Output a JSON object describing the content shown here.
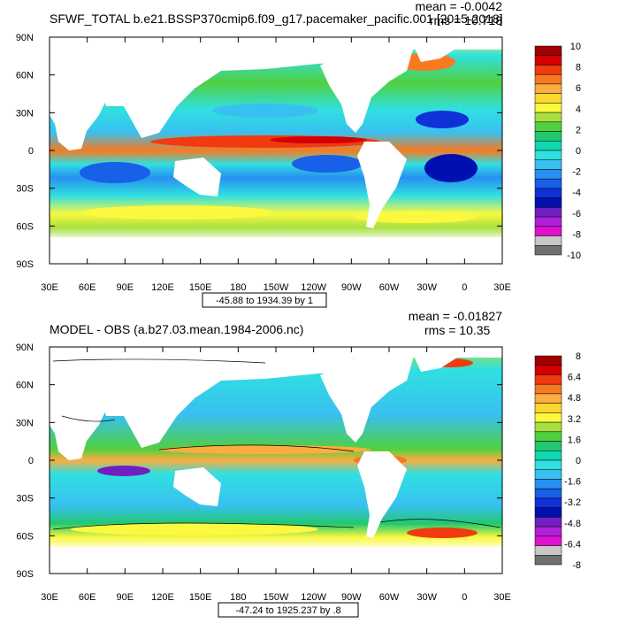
{
  "chart_data": [
    {
      "type": "heatmap",
      "title": "SFWF_TOTAL b.e21.BSSP370cmip6.f09_g17.pacemaker_pacific.001 [2015-2018]",
      "stats": {
        "mean": "mean = -0.0042",
        "rms": "rms = 10.718"
      },
      "x_ticks": [
        "30E",
        "60E",
        "90E",
        "120E",
        "150E",
        "180",
        "150W",
        "120W",
        "90W",
        "60W",
        "30W",
        "0",
        "30E"
      ],
      "y_ticks": [
        "90N",
        "60N",
        "30N",
        "0",
        "30S",
        "60S",
        "90S"
      ],
      "xlim": [
        30,
        390
      ],
      "ylim": [
        -90,
        90
      ],
      "colorbar": {
        "labels": [
          "10",
          "8",
          "6",
          "4",
          "2",
          "0",
          "-2",
          "-4",
          "-6",
          "-8",
          "-10"
        ],
        "colors": [
          "#a00000",
          "#d40000",
          "#f03a10",
          "#f87a20",
          "#fcac40",
          "#fbd830",
          "#fbf840",
          "#a8e040",
          "#50d040",
          "#22c870",
          "#10d8b0",
          "#30e0e0",
          "#38c0f0",
          "#2890f0",
          "#1860e8",
          "#1030d8",
          "#0010b0",
          "#7020c0",
          "#b020d8",
          "#e010d0",
          "#c8c8c8",
          "#707070"
        ]
      },
      "range_label": "-45.88 to 1934.39 by 1"
    },
    {
      "type": "heatmap",
      "title": "MODEL - OBS (a.b27.03.mean.1984-2006.nc)",
      "stats": {
        "mean": "mean = -0.01827",
        "rms": "rms = 10.35"
      },
      "x_ticks": [
        "30E",
        "60E",
        "90E",
        "120E",
        "150E",
        "180",
        "150W",
        "120W",
        "90W",
        "60W",
        "30W",
        "0",
        "30E"
      ],
      "y_ticks": [
        "90N",
        "60N",
        "30N",
        "0",
        "30S",
        "60S",
        "90S"
      ],
      "xlim": [
        30,
        390
      ],
      "ylim": [
        -90,
        90
      ],
      "colorbar": {
        "labels": [
          "8",
          "6.4",
          "4.8",
          "3.2",
          "1.6",
          "0",
          "-1.6",
          "-3.2",
          "-4.8",
          "-6.4",
          "-8"
        ],
        "colors": [
          "#a00000",
          "#d40000",
          "#f03a10",
          "#f87a20",
          "#fcac40",
          "#fbd830",
          "#fbf840",
          "#a8e040",
          "#50d040",
          "#22c870",
          "#10d8b0",
          "#30e0e0",
          "#38c0f0",
          "#2890f0",
          "#1860e8",
          "#1030d8",
          "#0010b0",
          "#7020c0",
          "#b020d8",
          "#e010d0",
          "#c8c8c8",
          "#707070"
        ]
      },
      "range_label": "-47.24 to 1925.237 by .8"
    }
  ]
}
